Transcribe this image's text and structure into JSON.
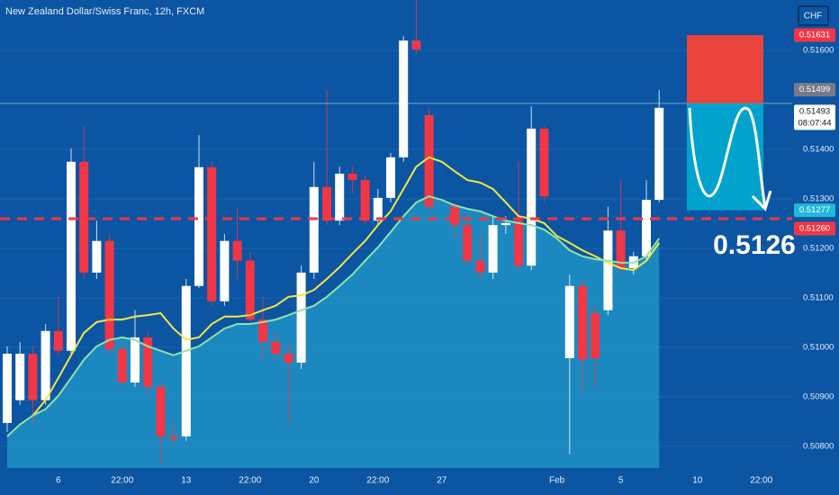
{
  "chart_data": {
    "type": "candlestick",
    "title": "New Zealand Dollar/Swiss Franc, 12h, FXCM",
    "currency": "CHF",
    "background": "#0b55a3",
    "up_color": "#ffffff",
    "down_color": "#f23645",
    "area_color": "#1e93c4",
    "categories": [
      null,
      null,
      null,
      null,
      "6",
      null,
      null,
      null,
      null,
      "22:00",
      null,
      null,
      null,
      null,
      "13",
      null,
      null,
      null,
      null,
      "22:00",
      null,
      null,
      null,
      null,
      "20",
      null,
      null,
      null,
      null,
      "22:00",
      null,
      null,
      null,
      null,
      "27",
      null,
      null,
      null,
      null,
      null,
      null,
      null,
      null,
      "Feb",
      null,
      null,
      null,
      null,
      "5",
      null,
      null,
      null,
      null,
      null,
      "10",
      null,
      null,
      null,
      null,
      "22:00"
    ],
    "open": [
      0.50847,
      0.50893,
      0.50987,
      0.50893,
      0.51033,
      0.50993,
      0.51375,
      0.51151,
      0.51215,
      0.50996,
      0.50929,
      0.5102,
      0.5092,
      0.5082,
      0.5082,
      0.51124,
      0.51364,
      0.51093,
      0.51215,
      0.51175,
      0.51056,
      0.51011,
      0.50987,
      0.50969,
      0.51151,
      0.51324,
      0.51256,
      0.51351,
      0.51338,
      0.51256,
      0.51302,
      0.51384,
      0.5162,
      0.51469,
      null,
      0.51284,
      0.51247,
      0.51175,
      0.51151,
      0.51247,
      0.51256,
      0.51165,
      0.51442,
      null,
      0.50978,
      0.51124,
      0.51069,
      0.51075,
      0.51236,
      0.5116,
      0.51184,
      0.51298,
      null,
      null,
      null,
      null,
      null,
      null,
      null,
      null
    ],
    "high": [
      0.51002,
      0.51011,
      0.51002,
      0.51047,
      0.51102,
      0.51402,
      0.51447,
      0.51256,
      0.51229,
      0.51011,
      0.51075,
      0.51029,
      0.50929,
      0.50847,
      0.51138,
      0.51429,
      0.51375,
      0.51229,
      0.51284,
      0.51193,
      0.51102,
      0.51029,
      0.51011,
      0.51165,
      0.51375,
      0.5152,
      0.51365,
      0.51365,
      0.51347,
      0.5132,
      0.51393,
      0.51629,
      0.51702,
      0.51484,
      null,
      0.51293,
      0.51256,
      0.51229,
      0.51265,
      0.51265,
      0.51375,
      0.51487,
      0.51447,
      null,
      0.51147,
      0.51138,
      0.51084,
      0.51284,
      0.51338,
      0.51193,
      0.51338,
      0.5152,
      null,
      null,
      null,
      null,
      null,
      null,
      null,
      null
    ],
    "low": [
      0.50829,
      0.50884,
      0.50847,
      0.50884,
      0.50984,
      0.50984,
      0.51138,
      0.51138,
      0.50984,
      0.5092,
      0.5092,
      0.50902,
      0.50765,
      0.50802,
      0.50811,
      0.5112,
      0.51084,
      0.51084,
      0.51138,
      0.51047,
      0.50975,
      0.50975,
      0.50847,
      0.50956,
      0.51138,
      0.51247,
      0.51247,
      0.51311,
      0.51247,
      0.51247,
      0.51293,
      0.51375,
      0.51593,
      0.51275,
      null,
      0.5122,
      0.51165,
      0.51138,
      0.51138,
      0.51229,
      0.51156,
      0.51156,
      0.51293,
      null,
      0.50784,
      0.50911,
      0.5092,
      0.51065,
      0.51147,
      0.51147,
      0.51175,
      0.51293,
      null,
      null,
      null,
      null,
      null,
      null,
      null,
      null
    ],
    "close": [
      0.50987,
      0.50987,
      0.50893,
      0.51033,
      0.50993,
      0.51375,
      0.51151,
      0.51215,
      0.50996,
      0.50929,
      0.5102,
      0.5092,
      0.5082,
      0.50815,
      0.51124,
      0.51364,
      0.51093,
      0.51215,
      0.51175,
      0.51056,
      0.51011,
      0.50987,
      0.50969,
      0.51151,
      0.51324,
      0.51256,
      0.51351,
      0.51338,
      0.51256,
      0.51302,
      0.51384,
      0.5162,
      0.51602,
      0.51284,
      null,
      0.51247,
      0.51175,
      0.51151,
      0.51247,
      0.51251,
      0.51165,
      0.51442,
      0.51305,
      null,
      0.51124,
      0.50975,
      0.50978,
      0.51236,
      0.5116,
      0.51184,
      0.51298,
      0.51484,
      null,
      null,
      null,
      null,
      null,
      null,
      null,
      null
    ],
    "series": [
      {
        "color": "#f5e642",
        "values": [
          null,
          null,
          0.50862,
          0.50893,
          0.50938,
          0.50984,
          0.51029,
          0.51051,
          0.51056,
          0.51056,
          0.51062,
          0.51065,
          0.51069,
          0.51038,
          0.51015,
          0.5102,
          0.51047,
          0.51062,
          0.51062,
          0.51065,
          0.51075,
          0.51084,
          0.51102,
          0.51105,
          0.51116,
          0.51138,
          0.51162,
          0.51189,
          0.51215,
          0.51247,
          0.51275,
          0.5132,
          0.51365,
          0.51384,
          0.51375,
          0.51356,
          0.51338,
          0.51333,
          0.5132,
          0.51293,
          0.51265,
          0.5126,
          0.51251,
          0.51225,
          0.51211,
          0.51196,
          0.51184,
          0.51171,
          0.5116,
          0.51156,
          0.51175,
          0.51211,
          null,
          null,
          null,
          null,
          null,
          null,
          null,
          null
        ]
      },
      {
        "color": "#8fe3a6",
        "area": true,
        "values": [
          0.5082,
          0.50844,
          0.50862,
          0.50875,
          0.50902,
          0.50938,
          0.50975,
          0.51002,
          0.51015,
          0.5102,
          0.51015,
          0.51002,
          0.50993,
          0.50984,
          0.50993,
          0.51002,
          0.5102,
          0.51038,
          0.51047,
          0.51047,
          0.51051,
          0.51056,
          0.51065,
          0.51075,
          0.51084,
          0.51102,
          0.51124,
          0.51147,
          0.51175,
          0.51202,
          0.51233,
          0.51265,
          0.51293,
          0.51305,
          0.51298,
          0.51287,
          0.5128,
          0.51275,
          0.51265,
          0.51256,
          0.51251,
          0.51247,
          0.51238,
          0.5122,
          0.51196,
          0.51184,
          0.51178,
          0.51175,
          0.51171,
          0.51171,
          0.51184,
          0.5122,
          null,
          null,
          null,
          null,
          null,
          null,
          null,
          null
        ]
      }
    ],
    "ylim": [
      0.50756,
      0.51702
    ],
    "yticks": [
      {
        "value": 0.508,
        "label": "0.50800"
      },
      {
        "value": 0.509,
        "label": "0.50900"
      },
      {
        "value": 0.51,
        "label": "0.51000"
      },
      {
        "value": 0.511,
        "label": "0.51100"
      },
      {
        "value": 0.512,
        "label": "0.51200"
      },
      {
        "value": 0.513,
        "label": "0.51300"
      },
      {
        "value": 0.514,
        "label": "0.51400"
      },
      {
        "value": 0.516,
        "label": "0.51600"
      }
    ],
    "grid": true,
    "price_labels": [
      {
        "value": 0.51631,
        "label": "0.51631",
        "color": "#f23645"
      },
      {
        "value": 0.51499,
        "label": "0.51499",
        "color": "#787b86"
      },
      {
        "value": 0.51493,
        "label": "0.51493",
        "countdown": "08:07:44",
        "color": "#ffffff"
      },
      {
        "value": 0.51277,
        "label": "0.51277",
        "color": "#22b8d8"
      },
      {
        "value": 0.5126,
        "label": "0.51260",
        "color": "#f23645"
      }
    ],
    "annotation": {
      "value": 0.5126,
      "label": "0.5126"
    }
  }
}
